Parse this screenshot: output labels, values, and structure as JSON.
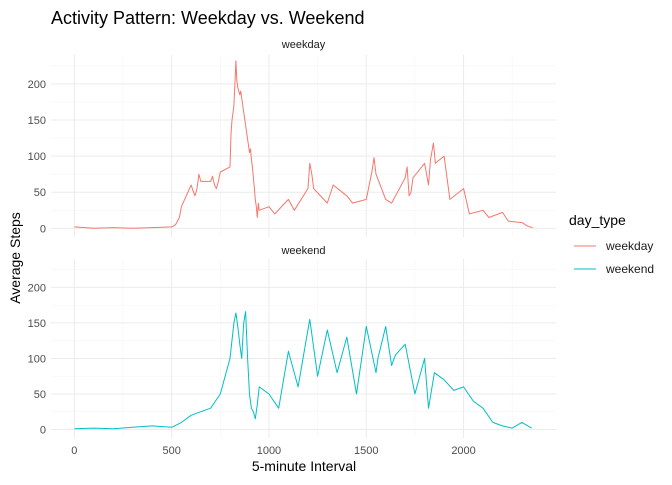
{
  "chart_data": {
    "type": "line",
    "title": "Activity Pattern: Weekday vs. Weekend",
    "xlabel": "5-minute Interval",
    "ylabel": "Average Steps",
    "xlim": [
      -120,
      2475
    ],
    "ylim": [
      -12,
      240
    ],
    "xticks": [
      0,
      500,
      1000,
      1500,
      2000
    ],
    "yticks": [
      0,
      50,
      100,
      150,
      200
    ],
    "grid": true,
    "legend": {
      "title": "day_type",
      "position": "right"
    },
    "facets": [
      "weekday",
      "weekend"
    ],
    "series": [
      {
        "name": "weekday",
        "color": "#F8766D",
        "x": [
          0,
          100,
          200,
          300,
          400,
          500,
          520,
          540,
          550,
          600,
          610,
          620,
          630,
          640,
          650,
          700,
          710,
          720,
          730,
          740,
          750,
          800,
          805,
          810,
          815,
          820,
          825,
          830,
          835,
          840,
          845,
          850,
          855,
          900,
          905,
          910,
          915,
          920,
          925,
          930,
          935,
          940,
          945,
          950,
          1000,
          1030,
          1100,
          1130,
          1200,
          1210,
          1220,
          1230,
          1300,
          1330,
          1400,
          1430,
          1500,
          1530,
          1540,
          1550,
          1600,
          1630,
          1700,
          1710,
          1720,
          1730,
          1740,
          1800,
          1820,
          1830,
          1840,
          1845,
          1850,
          1855,
          1900,
          1930,
          2000,
          2030,
          2100,
          2130,
          2200,
          2230,
          2300,
          2330,
          2355
        ],
        "y": [
          2,
          0,
          1,
          0,
          1,
          2,
          5,
          15,
          30,
          60,
          52,
          45,
          55,
          75,
          65,
          65,
          72,
          60,
          55,
          65,
          78,
          85,
          130,
          150,
          160,
          170,
          200,
          232,
          205,
          195,
          190,
          185,
          190,
          105,
          110,
          96,
          85,
          70,
          55,
          40,
          30,
          15,
          35,
          25,
          30,
          20,
          40,
          25,
          55,
          90,
          75,
          55,
          35,
          60,
          45,
          35,
          40,
          80,
          98,
          75,
          40,
          35,
          70,
          85,
          45,
          50,
          70,
          90,
          60,
          95,
          110,
          118,
          105,
          90,
          100,
          40,
          55,
          20,
          25,
          15,
          22,
          10,
          8,
          3,
          1
        ]
      },
      {
        "name": "weekend",
        "color": "#00BFC4",
        "x": [
          0,
          100,
          200,
          300,
          400,
          500,
          550,
          600,
          650,
          700,
          750,
          800,
          820,
          830,
          840,
          850,
          860,
          870,
          880,
          890,
          900,
          910,
          920,
          930,
          940,
          950,
          1000,
          1050,
          1100,
          1150,
          1200,
          1210,
          1250,
          1300,
          1350,
          1400,
          1450,
          1500,
          1550,
          1560,
          1600,
          1630,
          1650,
          1700,
          1750,
          1800,
          1820,
          1850,
          1900,
          1950,
          2000,
          2050,
          2100,
          2150,
          2200,
          2250,
          2300,
          2330,
          2350
        ],
        "y": [
          1,
          2,
          1,
          3,
          5,
          3,
          10,
          20,
          25,
          30,
          50,
          100,
          150,
          164,
          145,
          120,
          100,
          150,
          166,
          100,
          50,
          30,
          25,
          15,
          35,
          60,
          50,
          30,
          110,
          60,
          140,
          155,
          75,
          140,
          80,
          130,
          50,
          145,
          80,
          100,
          145,
          90,
          105,
          120,
          50,
          100,
          30,
          80,
          70,
          55,
          60,
          40,
          30,
          10,
          5,
          2,
          10,
          5,
          2
        ]
      }
    ]
  }
}
